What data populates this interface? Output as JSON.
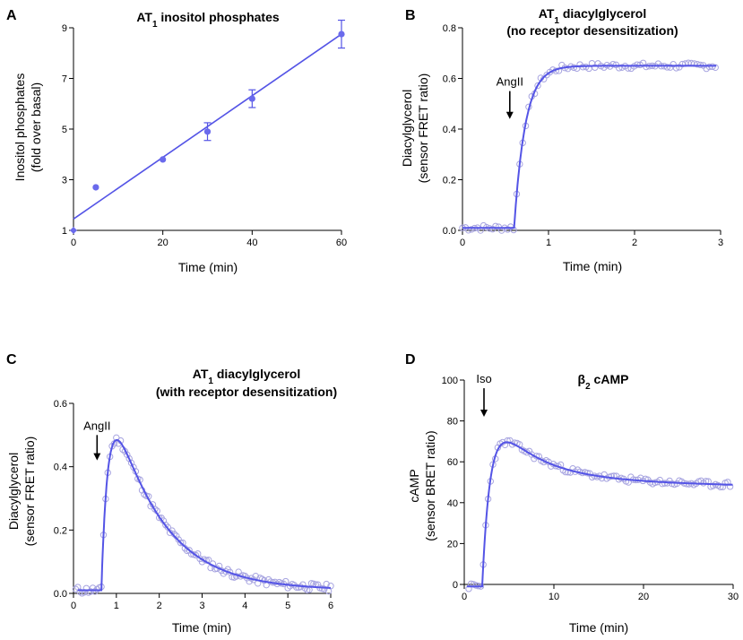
{
  "figure": {
    "panels": [
      "A",
      "B",
      "C",
      "D"
    ]
  },
  "colors": {
    "line": "#5454e6",
    "marker_filled": "#6a6aec",
    "marker_open": "#a7a4e0",
    "axis": "#000000"
  },
  "chart_data": [
    {
      "panel": "A",
      "type": "scatter",
      "title_main": "AT",
      "title_sub": "1",
      "title_rest": " inositol phosphates",
      "xlabel": "Time (min)",
      "ylabel_lines": [
        "Inositol phosphates",
        "(fold over basal)"
      ],
      "xlim": [
        0,
        60
      ],
      "ylim": [
        1,
        9
      ],
      "xticks": [
        0,
        20,
        40,
        60
      ],
      "yticks": [
        1,
        3,
        5,
        7,
        9
      ],
      "points": [
        {
          "x": 0,
          "y": 1.0
        },
        {
          "x": 5,
          "y": 2.7
        },
        {
          "x": 20,
          "y": 3.8
        },
        {
          "x": 30,
          "y": 4.9,
          "err": 0.35
        },
        {
          "x": 40,
          "y": 6.2,
          "err": 0.35
        },
        {
          "x": 60,
          "y": 8.75,
          "err": 0.55
        }
      ],
      "fit": {
        "kind": "linear",
        "x0": 0,
        "y0": 1.45,
        "x1": 60,
        "y1": 8.75
      }
    },
    {
      "panel": "B",
      "type": "scatter",
      "title_line1_main": "AT",
      "title_line1_sub": "1",
      "title_line1_rest": " diacylglycerol",
      "title_line2": "(no receptor desensitization)",
      "xlabel": "Time (min)",
      "ylabel_lines": [
        "Diacylglycerol",
        "(sensor FRET ratio)"
      ],
      "xlim": [
        0,
        3
      ],
      "ylim": [
        0,
        0.8
      ],
      "xticks": [
        0,
        1,
        2,
        3
      ],
      "yticks": [
        0.0,
        0.2,
        0.4,
        0.6,
        0.8
      ],
      "ytick_labels": [
        "0.0",
        "0.2",
        "0.4",
        "0.6",
        "0.8"
      ],
      "annotation": {
        "text": "AngII",
        "x": 0.55,
        "y_from": 0.55,
        "y_to": 0.44
      },
      "model": {
        "baseline": 0.01,
        "onset": 0.6,
        "plateau": 0.65,
        "tau": 0.13
      },
      "open_points": {
        "x_start": 0.0,
        "x_end": 2.95,
        "step": 0.035,
        "noise": 0.012,
        "seed": 7
      }
    },
    {
      "panel": "C",
      "type": "scatter",
      "title_line1_main": "AT",
      "title_line1_sub": "1",
      "title_line1_rest": " diacylglycerol",
      "title_line2": "(with receptor desensitization)",
      "xlabel": "Time (min)",
      "ylabel_lines": [
        "Diacylglycerol",
        "(sensor FRET ratio)"
      ],
      "xlim": [
        0,
        6
      ],
      "ylim": [
        0,
        0.6
      ],
      "xticks": [
        0,
        1,
        2,
        3,
        4,
        5,
        6
      ],
      "yticks": [
        0.0,
        0.2,
        0.4,
        0.6
      ],
      "ytick_labels": [
        "0.0",
        "0.2",
        "0.4",
        "0.6"
      ],
      "annotation": {
        "text": "AngII",
        "x": 0.55,
        "y_from": 0.5,
        "y_to": 0.42
      },
      "model": {
        "baseline": 0.01,
        "onset": 0.65,
        "amp": 0.75,
        "tau_rise": 0.18,
        "tau_decay": 1.15
      },
      "open_points": {
        "x_start": 0.05,
        "x_end": 6.0,
        "step": 0.05,
        "noise": 0.012,
        "seed": 11
      }
    },
    {
      "panel": "D",
      "type": "scatter",
      "title_main": "β",
      "title_sub": "2",
      "title_rest": " cAMP",
      "xlabel": "Time (min)",
      "ylabel_lines": [
        "cAMP",
        "(sensor BRET ratio)"
      ],
      "xlim": [
        0,
        30
      ],
      "ylim": [
        0,
        100
      ],
      "xticks": [
        0,
        10,
        20,
        30
      ],
      "yticks": [
        0,
        20,
        40,
        60,
        80,
        100
      ],
      "ytick_labels": [
        "0",
        "20",
        "40",
        "60",
        "80",
        "100"
      ],
      "annotation": {
        "text": "Iso",
        "x": 2.2,
        "y_from": 96,
        "y_to": 82
      },
      "model": {
        "baseline": -1,
        "onset": 2.0,
        "rise_amp": 93,
        "tau_rise": 0.9,
        "fast_amp": 36,
        "tau_fast": 4.5,
        "slow_level": 60,
        "tau_slow": 45
      },
      "open_points": {
        "x_start": 0.5,
        "x_end": 29.8,
        "step": 0.27,
        "noise": 1.5,
        "seed": 23
      }
    }
  ]
}
